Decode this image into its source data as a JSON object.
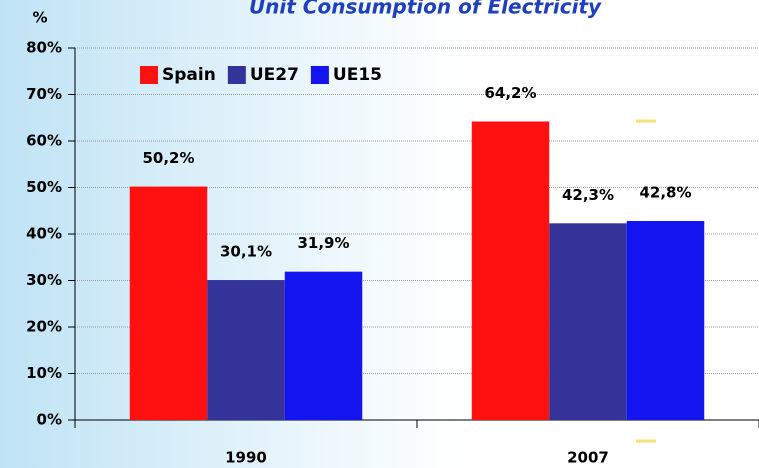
{
  "chart_data": {
    "type": "bar",
    "title": "Unit Consumption of Electricity",
    "y_label": "%",
    "categories": [
      "1990",
      "2007"
    ],
    "series": [
      {
        "name": "Spain",
        "color": "#ff1111",
        "values": [
          50.2,
          64.2
        ],
        "value_labels": [
          "50,2%",
          "64,2%"
        ]
      },
      {
        "name": "UE27",
        "color": "#333399",
        "values": [
          30.1,
          42.3
        ],
        "value_labels": [
          "30,1%",
          "42,3%"
        ]
      },
      {
        "name": "UE15",
        "color": "#1414f0",
        "values": [
          31.9,
          42.8
        ],
        "value_labels": [
          "31,9%",
          "42,8%"
        ]
      }
    ],
    "ylim": [
      0,
      80
    ],
    "yticks": [
      {
        "value": 0,
        "label": "0%"
      },
      {
        "value": 10,
        "label": "10%"
      },
      {
        "value": 20,
        "label": "20%"
      },
      {
        "value": 30,
        "label": "30%"
      },
      {
        "value": 40,
        "label": "40%"
      },
      {
        "value": 50,
        "label": "50%"
      },
      {
        "value": 60,
        "label": "60%"
      },
      {
        "value": 70,
        "label": "70%"
      },
      {
        "value": 80,
        "label": "80%"
      }
    ],
    "grid": true,
    "legend": "top-left"
  }
}
